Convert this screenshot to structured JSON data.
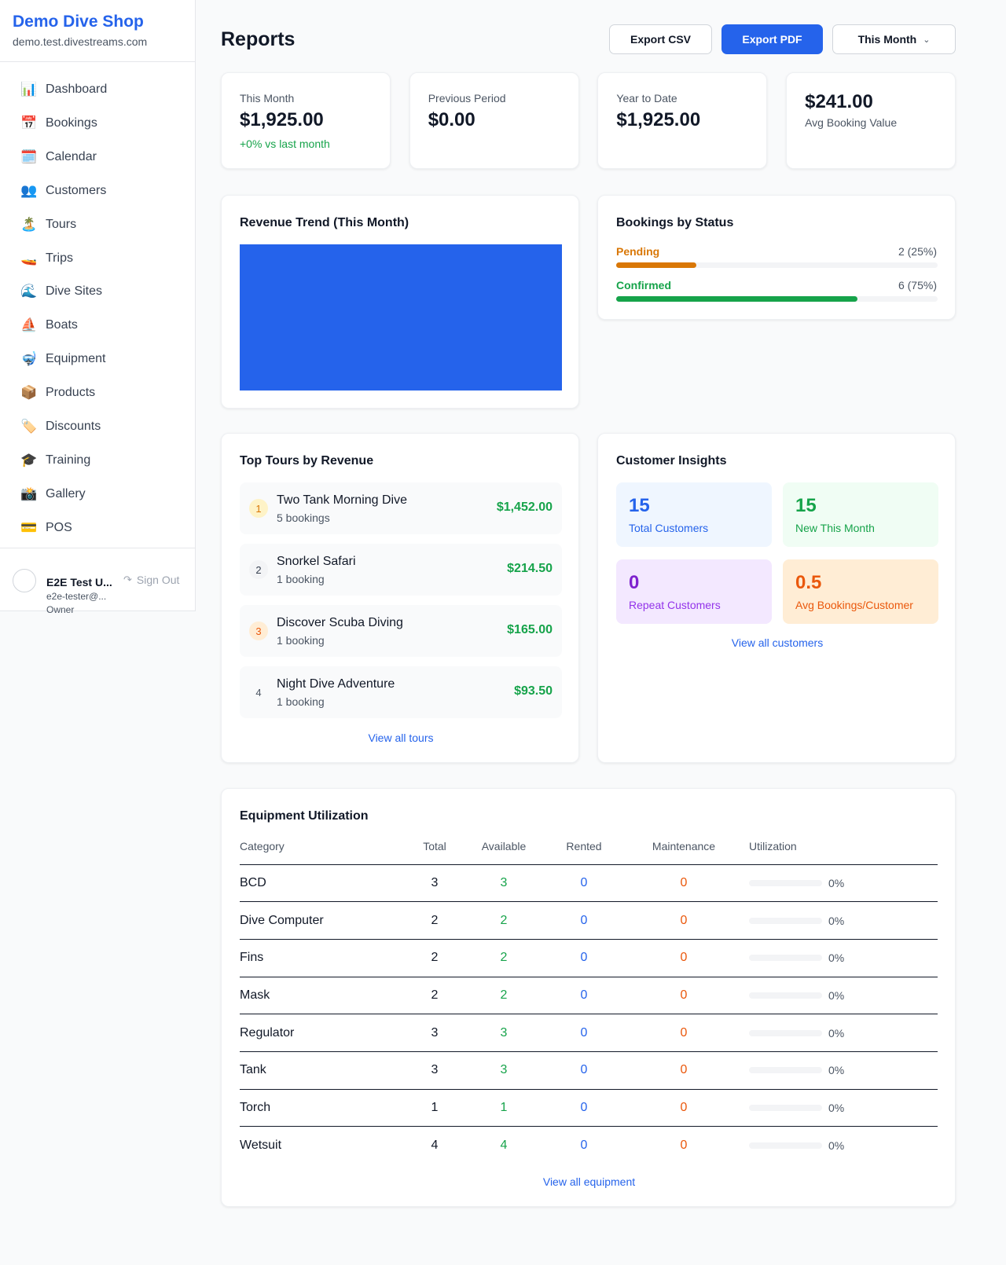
{
  "sidebar": {
    "brand": "Demo Dive Shop",
    "domain": "demo.test.divestreams.com",
    "nav": [
      {
        "icon": "📊",
        "label": "Dashboard"
      },
      {
        "icon": "📅",
        "label": "Bookings"
      },
      {
        "icon": "🗓️",
        "label": "Calendar"
      },
      {
        "icon": "👥",
        "label": "Customers"
      },
      {
        "icon": "🏝️",
        "label": "Tours"
      },
      {
        "icon": "🚤",
        "label": "Trips"
      },
      {
        "icon": "🌊",
        "label": "Dive Sites"
      },
      {
        "icon": "⛵",
        "label": "Boats"
      },
      {
        "icon": "🤿",
        "label": "Equipment"
      },
      {
        "icon": "📦",
        "label": "Products"
      },
      {
        "icon": "🏷️",
        "label": "Discounts"
      },
      {
        "icon": "🎓",
        "label": "Training"
      },
      {
        "icon": "📸",
        "label": "Gallery"
      },
      {
        "icon": "💳",
        "label": "POS"
      }
    ],
    "user": {
      "name": "E2E Test U...",
      "email": "e2e-tester@...",
      "role": "Owner",
      "sign_out": "Sign Out"
    }
  },
  "header": {
    "title": "Reports",
    "export_csv": "Export CSV",
    "export_pdf": "Export PDF",
    "period": "This Month"
  },
  "stats": [
    {
      "label": "This Month",
      "value": "$1,925.00",
      "note": "+0% vs last month"
    },
    {
      "label": "Previous Period",
      "value": "$0.00"
    },
    {
      "label": "Year to Date",
      "value": "$1,925.00"
    },
    {
      "value": "$241.00",
      "label": "Avg Booking Value"
    }
  ],
  "revenue_trend": {
    "title": "Revenue Trend (This Month)"
  },
  "bookings_by_status": {
    "title": "Bookings by Status",
    "items": [
      {
        "name": "Pending",
        "label": "2 (25%)",
        "percent": 25
      },
      {
        "name": "Confirmed",
        "label": "6 (75%)",
        "percent": 75
      }
    ]
  },
  "top_tours": {
    "title": "Top Tours by Revenue",
    "items": [
      {
        "rank": 1,
        "name": "Two Tank Morning Dive",
        "bookings": "5 bookings",
        "revenue": "$1,452.00"
      },
      {
        "rank": 2,
        "name": "Snorkel Safari",
        "bookings": "1 booking",
        "revenue": "$214.50"
      },
      {
        "rank": 3,
        "name": "Discover Scuba Diving",
        "bookings": "1 booking",
        "revenue": "$165.00"
      },
      {
        "rank": 4,
        "name": "Night Dive Adventure",
        "bookings": "1 booking",
        "revenue": "$93.50"
      }
    ],
    "link": "View all tours"
  },
  "customer_insights": {
    "title": "Customer Insights",
    "tiles": [
      {
        "value": 15,
        "label": "Total Customers"
      },
      {
        "value": 15,
        "label": "New This Month"
      },
      {
        "value": 0,
        "label": "Repeat Customers"
      },
      {
        "value": 0.5,
        "label": "Avg Bookings/Customer"
      }
    ],
    "link": "View all customers"
  },
  "equipment": {
    "title": "Equipment Utilization",
    "columns": [
      "Category",
      "Total",
      "Available",
      "Rented",
      "Maintenance",
      "Utilization"
    ],
    "rows": [
      {
        "category": "BCD",
        "total": 3,
        "available": 3,
        "rented": 0,
        "maintenance": 0,
        "utilization": {
          "value": 0,
          "label": "0%"
        }
      },
      {
        "category": "Dive Computer",
        "total": 2,
        "available": 2,
        "rented": 0,
        "maintenance": 0,
        "utilization": {
          "value": 0,
          "label": "0%"
        }
      },
      {
        "category": "Fins",
        "total": 2,
        "available": 2,
        "rented": 0,
        "maintenance": 0,
        "utilization": {
          "value": 0,
          "label": "0%"
        }
      },
      {
        "category": "Mask",
        "total": 2,
        "available": 2,
        "rented": 0,
        "maintenance": 0,
        "utilization": {
          "value": 0,
          "label": "0%"
        }
      },
      {
        "category": "Regulator",
        "total": 3,
        "available": 3,
        "rented": 0,
        "maintenance": 0,
        "utilization": {
          "value": 0,
          "label": "0%"
        }
      },
      {
        "category": "Tank",
        "total": 3,
        "available": 3,
        "rented": 0,
        "maintenance": 0,
        "utilization": {
          "value": 0,
          "label": "0%"
        }
      },
      {
        "category": "Torch",
        "total": 1,
        "available": 1,
        "rented": 0,
        "maintenance": 0,
        "utilization": {
          "value": 0,
          "label": "0%"
        }
      },
      {
        "category": "Wetsuit",
        "total": 4,
        "available": 4,
        "rented": 0,
        "maintenance": 0,
        "utilization": {
          "value": 0,
          "label": "0%"
        }
      }
    ],
    "link": "View all equipment"
  }
}
